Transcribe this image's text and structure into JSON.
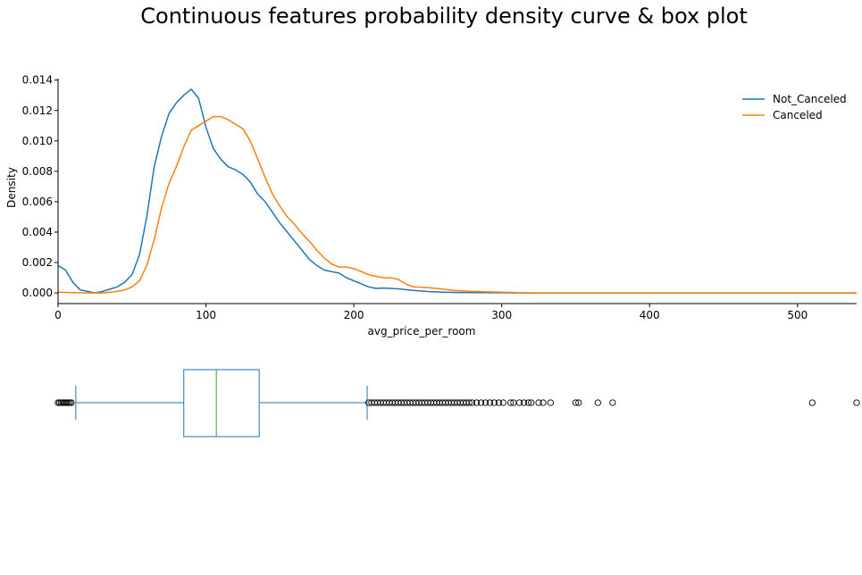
{
  "figure": {
    "title": "Continuous features probability density curve & box plot"
  },
  "chart_data": [
    {
      "type": "line",
      "subtype": "kde-density",
      "xlabel": "avg_price_per_room",
      "ylabel": "Density",
      "xlim": [
        0,
        540
      ],
      "ylim": [
        -0.0007,
        0.0141
      ],
      "xticks": [
        "0",
        "100",
        "200",
        "300",
        "400",
        "500"
      ],
      "xtick_values": [
        0,
        100,
        200,
        300,
        400,
        500
      ],
      "yticks": [
        "0.000",
        "0.002",
        "0.004",
        "0.006",
        "0.008",
        "0.010",
        "0.012",
        "0.014"
      ],
      "ytick_values": [
        0,
        0.002,
        0.004,
        0.006,
        0.008,
        0.01,
        0.012,
        0.014
      ],
      "grid": false,
      "legend_position": "top-right",
      "series": [
        {
          "name": "Not_Canceled",
          "color": "#1f77b4",
          "points": [
            [
              0,
              0.0018
            ],
            [
              5,
              0.0015
            ],
            [
              10,
              0.0007
            ],
            [
              15,
              0.0002
            ],
            [
              20,
              0.0001
            ],
            [
              25,
              0.0
            ],
            [
              30,
              0.0001
            ],
            [
              40,
              0.0004
            ],
            [
              45,
              0.0007
            ],
            [
              50,
              0.0012
            ],
            [
              55,
              0.0025
            ],
            [
              60,
              0.005
            ],
            [
              65,
              0.0083
            ],
            [
              70,
              0.0103
            ],
            [
              75,
              0.0118
            ],
            [
              80,
              0.0125
            ],
            [
              85,
              0.013
            ],
            [
              90,
              0.0134
            ],
            [
              95,
              0.0128
            ],
            [
              100,
              0.0109
            ],
            [
              105,
              0.0095
            ],
            [
              110,
              0.0088
            ],
            [
              115,
              0.0083
            ],
            [
              120,
              0.0081
            ],
            [
              125,
              0.0078
            ],
            [
              130,
              0.0073
            ],
            [
              135,
              0.0065
            ],
            [
              140,
              0.006
            ],
            [
              145,
              0.0053
            ],
            [
              150,
              0.0046
            ],
            [
              155,
              0.004
            ],
            [
              160,
              0.0034
            ],
            [
              165,
              0.0028
            ],
            [
              170,
              0.0022
            ],
            [
              175,
              0.0018
            ],
            [
              180,
              0.0015
            ],
            [
              185,
              0.0014
            ],
            [
              190,
              0.0013
            ],
            [
              195,
              0.001
            ],
            [
              200,
              0.0008
            ],
            [
              205,
              0.0006
            ],
            [
              210,
              0.0004
            ],
            [
              215,
              0.0003
            ],
            [
              220,
              0.00032
            ],
            [
              225,
              0.0003
            ],
            [
              230,
              0.00027
            ],
            [
              240,
              0.00017
            ],
            [
              250,
              9e-05
            ],
            [
              260,
              5e-05
            ],
            [
              270,
              3e-05
            ],
            [
              280,
              2e-05
            ],
            [
              300,
              1e-05
            ],
            [
              320,
              0.0
            ],
            [
              400,
              0.0
            ],
            [
              540,
              0.0
            ]
          ]
        },
        {
          "name": "Canceled",
          "color": "#ff7f0e",
          "points": [
            [
              0,
              5e-05
            ],
            [
              10,
              2e-05
            ],
            [
              20,
              0.0
            ],
            [
              30,
              0.0
            ],
            [
              40,
              0.0001
            ],
            [
              45,
              0.0002
            ],
            [
              50,
              0.0004
            ],
            [
              55,
              0.0008
            ],
            [
              60,
              0.0018
            ],
            [
              65,
              0.0035
            ],
            [
              70,
              0.0056
            ],
            [
              75,
              0.0072
            ],
            [
              80,
              0.0083
            ],
            [
              85,
              0.0096
            ],
            [
              90,
              0.0107
            ],
            [
              95,
              0.011
            ],
            [
              100,
              0.0113
            ],
            [
              105,
              0.0116
            ],
            [
              110,
              0.0116
            ],
            [
              115,
              0.0114
            ],
            [
              120,
              0.0111
            ],
            [
              125,
              0.0108
            ],
            [
              130,
              0.01
            ],
            [
              135,
              0.0088
            ],
            [
              140,
              0.0076
            ],
            [
              145,
              0.0065
            ],
            [
              150,
              0.0057
            ],
            [
              155,
              0.005
            ],
            [
              160,
              0.0045
            ],
            [
              165,
              0.0039
            ],
            [
              170,
              0.0034
            ],
            [
              175,
              0.0028
            ],
            [
              180,
              0.0023
            ],
            [
              185,
              0.0019
            ],
            [
              190,
              0.0017
            ],
            [
              195,
              0.0017
            ],
            [
              200,
              0.0016
            ],
            [
              205,
              0.0014
            ],
            [
              210,
              0.0012
            ],
            [
              215,
              0.0011
            ],
            [
              220,
              0.001
            ],
            [
              225,
              0.001
            ],
            [
              230,
              0.0009
            ],
            [
              235,
              0.0006
            ],
            [
              240,
              0.0004
            ],
            [
              250,
              0.00035
            ],
            [
              260,
              0.00025
            ],
            [
              270,
              0.00015
            ],
            [
              280,
              0.0001
            ],
            [
              300,
              5e-05
            ],
            [
              320,
              0.0
            ],
            [
              400,
              0.0
            ],
            [
              540,
              0.0
            ]
          ]
        }
      ]
    },
    {
      "type": "box",
      "orientation": "horizontal",
      "variable": "avg_price_per_room",
      "xlim": [
        0,
        540
      ],
      "whisker_low": 12,
      "q1": 85,
      "median": 107,
      "q3": 136,
      "whisker_high": 209,
      "box_color": "#1f77b4",
      "median_color": "#2ca02c",
      "outliers_low": [
        0,
        1,
        2,
        3,
        4,
        5,
        6,
        7,
        8,
        9
      ],
      "outliers_high": [
        210,
        212,
        214,
        216,
        218,
        220,
        222,
        224,
        226,
        228,
        230,
        232,
        234,
        236,
        238,
        240,
        242,
        244,
        246,
        248,
        250,
        252,
        254,
        256,
        258,
        260,
        262,
        264,
        266,
        268,
        270,
        272,
        274,
        276,
        278,
        280,
        283,
        286,
        289,
        292,
        295,
        298,
        301,
        306,
        308,
        312,
        315,
        318,
        320,
        325,
        328,
        333,
        350,
        352,
        365,
        375,
        510,
        540
      ]
    }
  ]
}
